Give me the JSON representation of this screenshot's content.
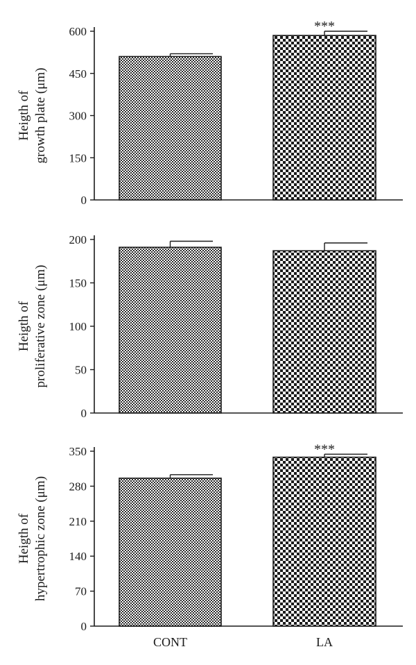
{
  "chart_data": [
    {
      "type": "bar",
      "categories": [
        "CONT",
        "LA"
      ],
      "series": [
        {
          "values": [
            510,
            585
          ],
          "errors": [
            10,
            15
          ]
        }
      ],
      "ylabel": [
        "Heigth of",
        "growth plate (μm)"
      ],
      "yticks": [
        0,
        150,
        300,
        450,
        600
      ],
      "ylim": [
        0,
        600
      ],
      "annotations": [
        "",
        "***"
      ],
      "xlabels_shown": false
    },
    {
      "type": "bar",
      "categories": [
        "CONT",
        "LA"
      ],
      "series": [
        {
          "values": [
            191,
            187
          ],
          "errors": [
            7,
            9
          ]
        }
      ],
      "ylabel": [
        "Heigth of",
        "proliferative zone (μm)"
      ],
      "yticks": [
        0,
        50,
        100,
        150,
        200
      ],
      "ylim": [
        0,
        200
      ],
      "annotations": [
        "",
        ""
      ],
      "xlabels_shown": false
    },
    {
      "type": "bar",
      "categories": [
        "CONT",
        "LA"
      ],
      "series": [
        {
          "values": [
            296,
            338
          ],
          "errors": [
            7,
            6
          ]
        }
      ],
      "ylabel": [
        "Heigth of",
        "hypertrophic zone (μm)"
      ],
      "yticks": [
        0,
        70,
        140,
        210,
        280,
        350
      ],
      "ylim": [
        0,
        350
      ],
      "annotations": [
        "",
        "***"
      ],
      "xlabels_shown": true
    }
  ]
}
